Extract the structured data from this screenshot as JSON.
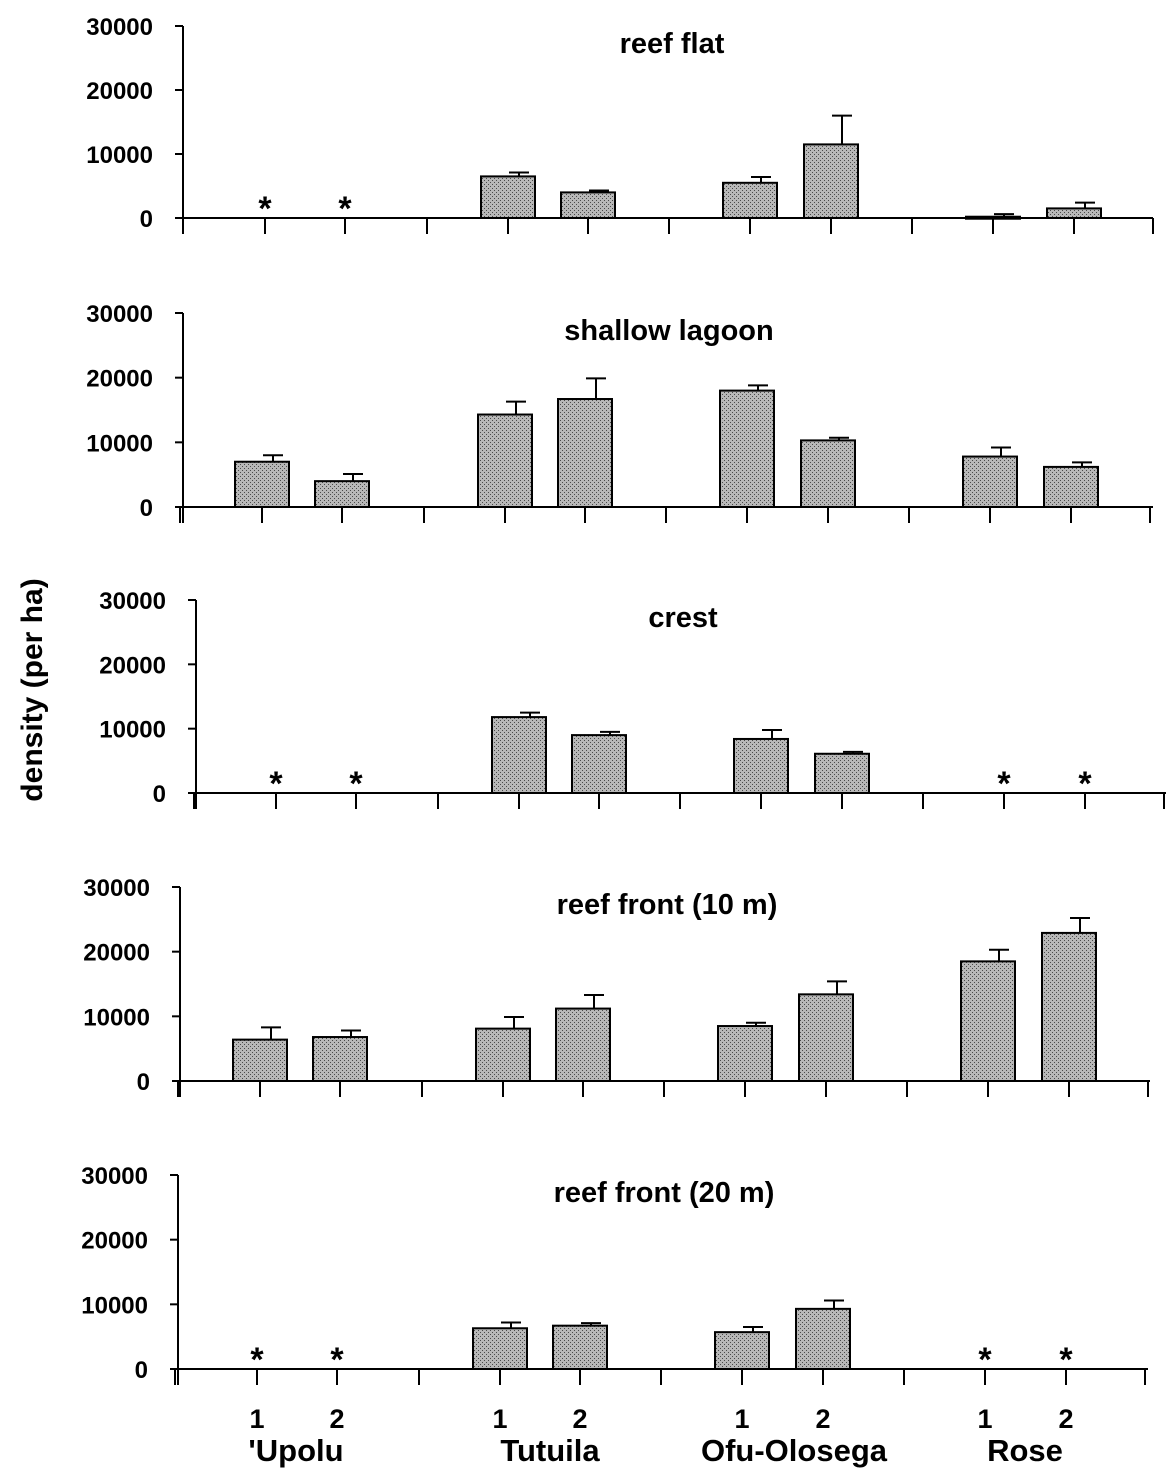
{
  "chart_data": {
    "type": "bar",
    "ylabel": "density (per ha)",
    "ylim": [
      0,
      30000
    ],
    "yticks": [
      "0",
      "10000",
      "20000",
      "30000"
    ],
    "islands": [
      "'Upolu",
      "Tutuila",
      "Ofu-Olosega",
      "Rose"
    ],
    "site_labels": [
      "1",
      "2"
    ],
    "missing_marker": "*",
    "bar_fill": "#9a9a9a",
    "panels": [
      {
        "title": "reef flat",
        "values": [
          null,
          null,
          6500,
          4000,
          5500,
          11500,
          200,
          1500
        ],
        "errors": [
          null,
          null,
          600,
          300,
          900,
          4500,
          400,
          900
        ]
      },
      {
        "title": "shallow lagoon",
        "values": [
          7000,
          4000,
          14300,
          16700,
          18000,
          10300,
          7800,
          6200
        ],
        "errors": [
          1000,
          1100,
          2000,
          3200,
          800,
          400,
          1400,
          700
        ]
      },
      {
        "title": "crest",
        "values": [
          null,
          null,
          11800,
          9000,
          8400,
          6100,
          null,
          null
        ],
        "errors": [
          null,
          null,
          700,
          500,
          1400,
          300,
          null,
          null
        ]
      },
      {
        "title": "reef front (10 m)",
        "values": [
          6400,
          6800,
          8100,
          11200,
          8500,
          13400,
          18500,
          22900
        ],
        "errors": [
          1900,
          1000,
          1800,
          2100,
          500,
          2000,
          1800,
          2300
        ]
      },
      {
        "title": "reef front (20 m)",
        "values": [
          null,
          null,
          6300,
          6700,
          5700,
          9300,
          null,
          null
        ],
        "errors": [
          null,
          null,
          900,
          400,
          800,
          1300,
          null,
          null
        ]
      }
    ]
  }
}
